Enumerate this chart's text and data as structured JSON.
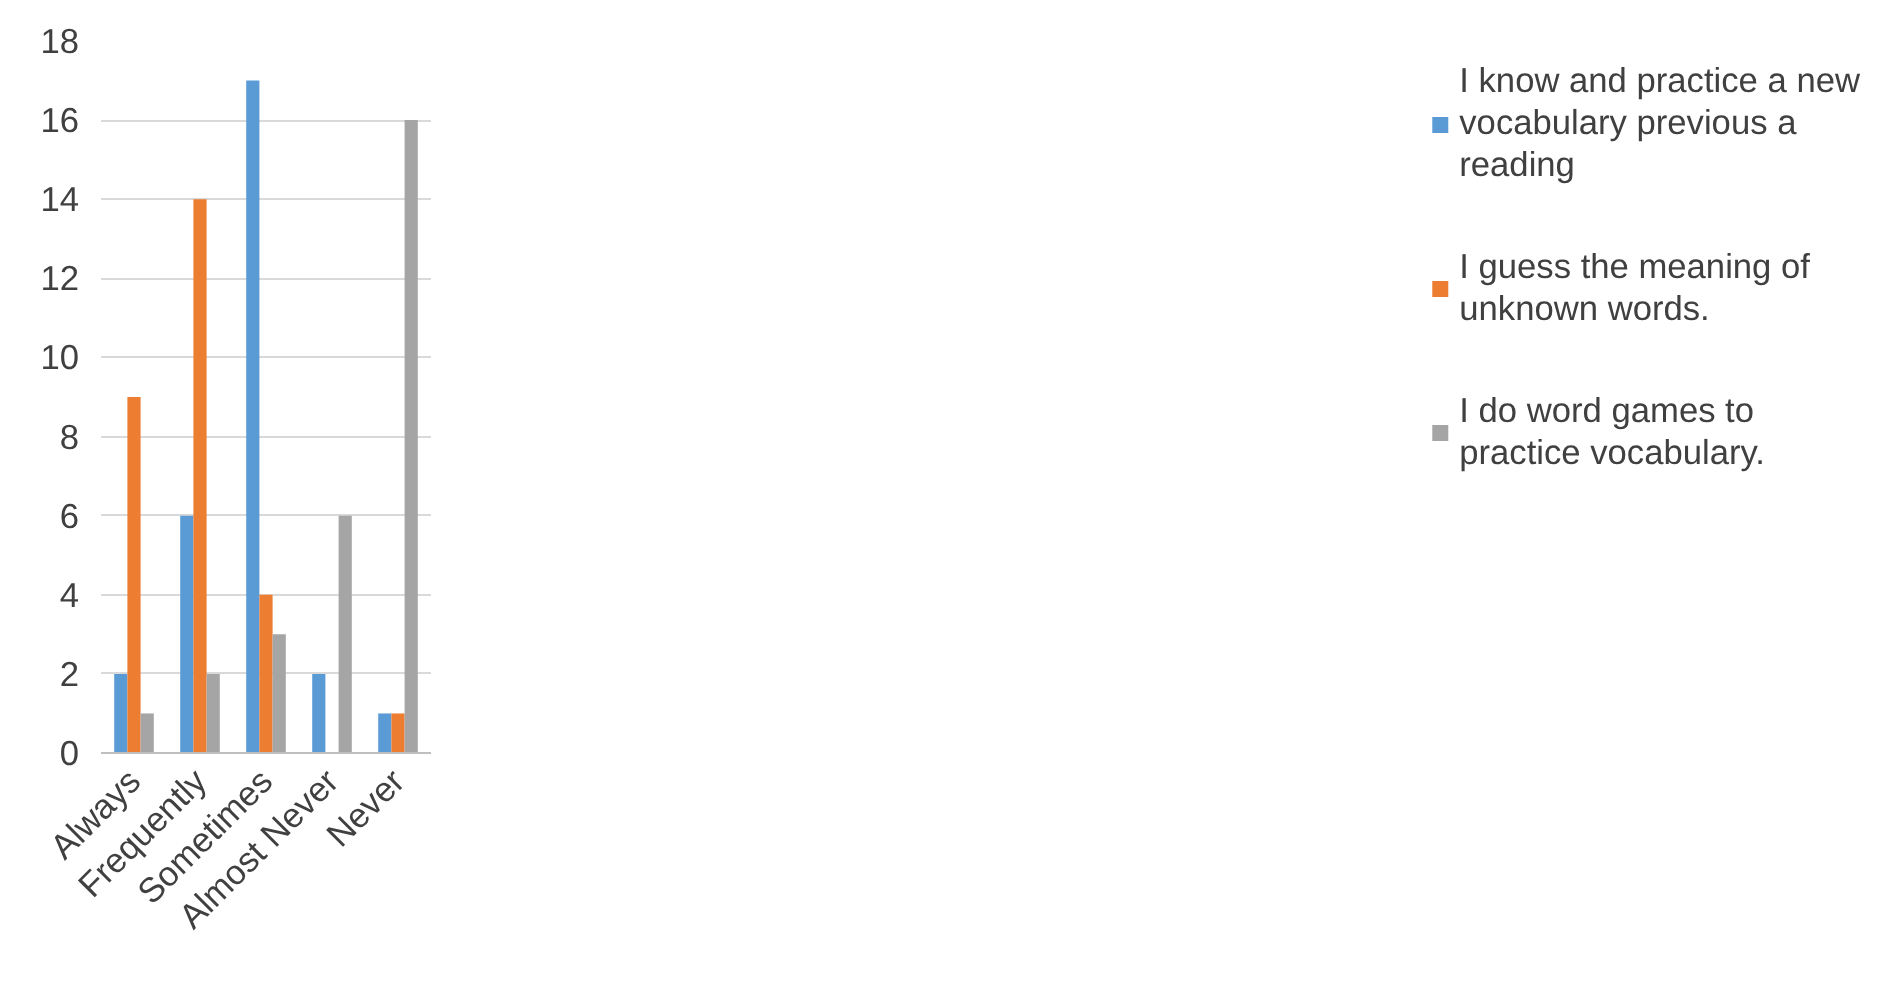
{
  "chart_data": {
    "type": "bar",
    "categories": [
      "Always",
      "Frequently",
      "Sometimes",
      "Almost Never",
      "Never"
    ],
    "series": [
      {
        "name": "I know and practice a new vocabulary previous a reading",
        "color": "#5b9bd5",
        "values": [
          2,
          6,
          17,
          2,
          1
        ]
      },
      {
        "name": "I guess the meaning of unknown words.",
        "color": "#ed7d31",
        "values": [
          9,
          14,
          4,
          0,
          1
        ]
      },
      {
        "name": "I do word games to practice vocabulary.",
        "color": "#a5a5a5",
        "values": [
          1,
          2,
          3,
          6,
          16
        ]
      }
    ],
    "ylim": [
      0,
      18
    ],
    "yticks": [
      0,
      2,
      4,
      6,
      8,
      10,
      12,
      14,
      16,
      18
    ],
    "grid": "y",
    "legend": "right"
  }
}
